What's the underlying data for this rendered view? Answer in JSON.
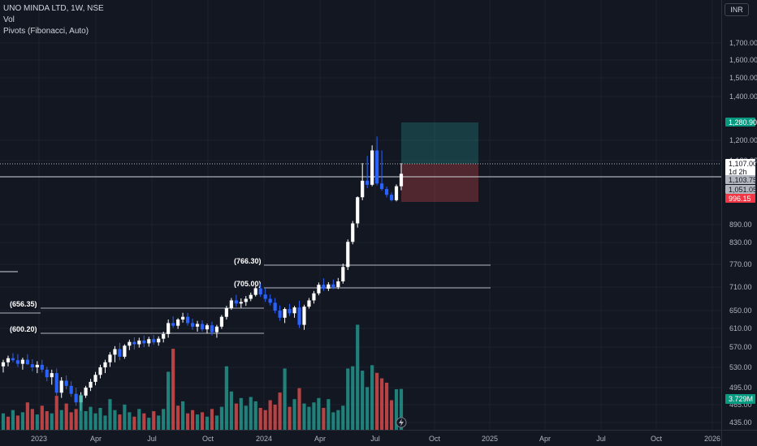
{
  "header": {
    "symbol_title": "UNO MINDA LTD, 1W, NSE",
    "indicator_vol": "Vol",
    "indicator_pivots": "Pivots (Fibonacci, Auto)",
    "currency": "INR"
  },
  "chart_data": {
    "type": "candlestick",
    "price_ticks": [
      "1,700.00",
      "1,600.00",
      "1,500.00",
      "1,400.00",
      "1,200.00",
      "1,120.00",
      "890.00",
      "830.00",
      "770.00",
      "710.00",
      "650.00",
      "610.00",
      "570.00",
      "530.00",
      "495.00",
      "465.00",
      "435.00"
    ],
    "time_ticks": [
      "2023",
      "Apr",
      "Jul",
      "Oct",
      "2024",
      "Apr",
      "Jul",
      "Oct",
      "2025",
      "Apr",
      "Jul",
      "Oct",
      "2026"
    ],
    "pivot_levels": [
      {
        "label": "(766.30)",
        "value": 766.3
      },
      {
        "label": "(705.00)",
        "value": 705.0
      },
      {
        "label": "(656.35)",
        "value": 656.35
      },
      {
        "label": "(600.20)",
        "value": 600.2
      }
    ],
    "price_tags": [
      {
        "text": "1,280.90",
        "color": "#089981",
        "value": 1280.9
      },
      {
        "text": "1,107.00",
        "color": "#ffffff",
        "value": 1107.0
      },
      {
        "text": "1d 2h",
        "color": "#ffffff",
        "value": 1093.0
      },
      {
        "text": "1,103.75",
        "color": "#b2b5be",
        "value": 1103.75
      },
      {
        "text": "1,051.05",
        "color": "#b2b5be",
        "value": 1051.05
      },
      {
        "text": "996.15",
        "color": "#f23645",
        "value": 996.15
      }
    ],
    "volume_tag": "3.729M",
    "position_tool": {
      "entry": 1107.0,
      "target": 1280.9,
      "stop": 1051.05
    },
    "candles": [
      [
        532,
        545,
        521,
        540
      ],
      [
        540,
        553,
        532,
        548
      ],
      [
        548,
        558,
        540,
        544
      ],
      [
        544,
        556,
        531,
        537
      ],
      [
        537,
        549,
        526,
        545
      ],
      [
        545,
        556,
        535,
        536
      ],
      [
        536,
        546,
        523,
        530
      ],
      [
        530,
        542,
        520,
        535
      ],
      [
        535,
        545,
        521,
        526
      ],
      [
        526,
        531,
        506,
        513
      ],
      [
        513,
        526,
        500,
        520
      ],
      [
        520,
        528,
        481,
        486
      ],
      [
        486,
        513,
        477,
        507
      ],
      [
        507,
        516,
        492,
        498
      ],
      [
        498,
        506,
        479,
        484
      ],
      [
        484,
        495,
        463,
        469
      ],
      [
        469,
        487,
        455,
        481
      ],
      [
        481,
        498,
        477,
        495
      ],
      [
        495,
        510,
        489,
        505
      ],
      [
        505,
        522,
        499,
        517
      ],
      [
        517,
        535,
        511,
        530
      ],
      [
        530,
        545,
        520,
        540
      ],
      [
        540,
        560,
        531,
        555
      ],
      [
        555,
        572,
        540,
        566
      ],
      [
        566,
        579,
        544,
        551
      ],
      [
        551,
        576,
        547,
        573
      ],
      [
        573,
        586,
        564,
        581
      ],
      [
        581,
        591,
        565,
        576
      ],
      [
        576,
        590,
        569,
        584
      ],
      [
        584,
        595,
        570,
        578
      ],
      [
        578,
        592,
        571,
        587
      ],
      [
        587,
        596,
        575,
        580
      ],
      [
        580,
        593,
        573,
        588
      ],
      [
        588,
        603,
        580,
        598
      ],
      [
        598,
        630,
        590,
        622
      ],
      [
        622,
        637,
        611,
        616
      ],
      [
        616,
        633,
        609,
        630
      ],
      [
        630,
        645,
        623,
        636
      ],
      [
        636,
        645,
        616,
        622
      ],
      [
        622,
        632,
        607,
        614
      ],
      [
        614,
        627,
        603,
        620
      ],
      [
        620,
        628,
        603,
        608
      ],
      [
        608,
        621,
        599,
        617
      ],
      [
        617,
        625,
        595,
        602
      ],
      [
        602,
        618,
        590,
        614
      ],
      [
        614,
        640,
        609,
        636
      ],
      [
        636,
        662,
        630,
        656
      ],
      [
        656,
        682,
        652,
        676
      ],
      [
        676,
        690,
        660,
        668
      ],
      [
        668,
        681,
        657,
        672
      ],
      [
        672,
        687,
        662,
        680
      ],
      [
        680,
        696,
        674,
        690
      ],
      [
        690,
        713,
        686,
        707
      ],
      [
        707,
        719,
        685,
        691
      ],
      [
        691,
        706,
        672,
        680
      ],
      [
        680,
        691,
        663,
        670
      ],
      [
        670,
        682,
        644,
        650
      ],
      [
        650,
        663,
        627,
        634
      ],
      [
        634,
        658,
        622,
        654
      ],
      [
        654,
        667,
        638,
        644
      ],
      [
        644,
        662,
        634,
        658
      ],
      [
        658,
        675,
        611,
        618
      ],
      [
        618,
        665,
        607,
        660
      ],
      [
        660,
        682,
        655,
        676
      ],
      [
        676,
        700,
        668,
        694
      ],
      [
        694,
        722,
        689,
        716
      ],
      [
        716,
        733,
        700,
        706
      ],
      [
        706,
        723,
        700,
        717
      ],
      [
        717,
        730,
        705,
        710
      ],
      [
        710,
        734,
        705,
        725
      ],
      [
        725,
        772,
        719,
        763
      ],
      [
        763,
        840,
        755,
        832
      ],
      [
        832,
        905,
        825,
        895
      ],
      [
        895,
        1010,
        880,
        1005
      ],
      [
        1005,
        1110,
        990,
        1100
      ],
      [
        1100,
        1138,
        1060,
        1078
      ],
      [
        1078,
        1180,
        1070,
        1160
      ],
      [
        1160,
        1217,
        1075,
        1085
      ],
      [
        1085,
        1160,
        1045,
        1055
      ],
      [
        1055,
        1068,
        1005,
        1020
      ],
      [
        1020,
        1035,
        985,
        990
      ],
      [
        990,
        1080,
        985,
        1070
      ],
      [
        1070,
        1110,
        1048,
        1105
      ]
    ],
    "volumes": [
      [
        1.5,
        "u"
      ],
      [
        1.2,
        "d"
      ],
      [
        1.8,
        "u"
      ],
      [
        1.3,
        "d"
      ],
      [
        1.6,
        "u"
      ],
      [
        2.5,
        "d"
      ],
      [
        1.9,
        "d"
      ],
      [
        1.4,
        "u"
      ],
      [
        2.2,
        "d"
      ],
      [
        1.7,
        "d"
      ],
      [
        1.5,
        "u"
      ],
      [
        3.1,
        "d"
      ],
      [
        1.8,
        "u"
      ],
      [
        2.4,
        "d"
      ],
      [
        1.6,
        "d"
      ],
      [
        1.9,
        "d"
      ],
      [
        3.2,
        "u"
      ],
      [
        1.7,
        "u"
      ],
      [
        2.1,
        "u"
      ],
      [
        1.5,
        "u"
      ],
      [
        2.0,
        "u"
      ],
      [
        1.3,
        "u"
      ],
      [
        2.8,
        "u"
      ],
      [
        1.8,
        "u"
      ],
      [
        1.4,
        "d"
      ],
      [
        2.3,
        "u"
      ],
      [
        1.6,
        "u"
      ],
      [
        1.2,
        "d"
      ],
      [
        1.9,
        "u"
      ],
      [
        1.5,
        "d"
      ],
      [
        1.1,
        "u"
      ],
      [
        1.7,
        "d"
      ],
      [
        1.3,
        "u"
      ],
      [
        1.9,
        "u"
      ],
      [
        5.3,
        "u"
      ],
      [
        7.4,
        "d"
      ],
      [
        2.2,
        "d"
      ],
      [
        2.6,
        "u"
      ],
      [
        1.5,
        "d"
      ],
      [
        1.8,
        "d"
      ],
      [
        1.4,
        "u"
      ],
      [
        1.6,
        "d"
      ],
      [
        1.2,
        "u"
      ],
      [
        1.9,
        "d"
      ],
      [
        1.3,
        "u"
      ],
      [
        2.1,
        "u"
      ],
      [
        5.8,
        "u"
      ],
      [
        3.5,
        "u"
      ],
      [
        2.4,
        "d"
      ],
      [
        2.9,
        "u"
      ],
      [
        2.2,
        "u"
      ],
      [
        3.0,
        "u"
      ],
      [
        2.6,
        "u"
      ],
      [
        2.0,
        "d"
      ],
      [
        1.8,
        "d"
      ],
      [
        2.7,
        "d"
      ],
      [
        2.3,
        "d"
      ],
      [
        3.4,
        "d"
      ],
      [
        5.6,
        "u"
      ],
      [
        2.1,
        "d"
      ],
      [
        2.8,
        "u"
      ],
      [
        3.8,
        "d"
      ],
      [
        2.4,
        "u"
      ],
      [
        2.1,
        "u"
      ],
      [
        2.5,
        "u"
      ],
      [
        2.9,
        "u"
      ],
      [
        2.0,
        "d"
      ],
      [
        2.8,
        "u"
      ],
      [
        1.6,
        "u"
      ],
      [
        1.8,
        "u"
      ],
      [
        2.2,
        "u"
      ],
      [
        5.6,
        "u"
      ],
      [
        5.8,
        "u"
      ],
      [
        9.6,
        "u"
      ],
      [
        5.4,
        "u"
      ],
      [
        3.9,
        "u"
      ],
      [
        5.9,
        "u"
      ],
      [
        5.2,
        "d"
      ],
      [
        4.7,
        "d"
      ],
      [
        4.3,
        "d"
      ],
      [
        2.7,
        "d"
      ],
      [
        3.7,
        "u"
      ],
      [
        3.729,
        "u"
      ]
    ],
    "colors": {
      "background": "#131722",
      "up": "#ffffff",
      "down": "#2962ff",
      "vol_up": "#26a69a",
      "vol_down": "#ef5350",
      "grid": "#1e222d",
      "pivot_line": "#b2b5be",
      "target_zone": "#26a69a",
      "stop_zone": "#ef5350"
    }
  }
}
